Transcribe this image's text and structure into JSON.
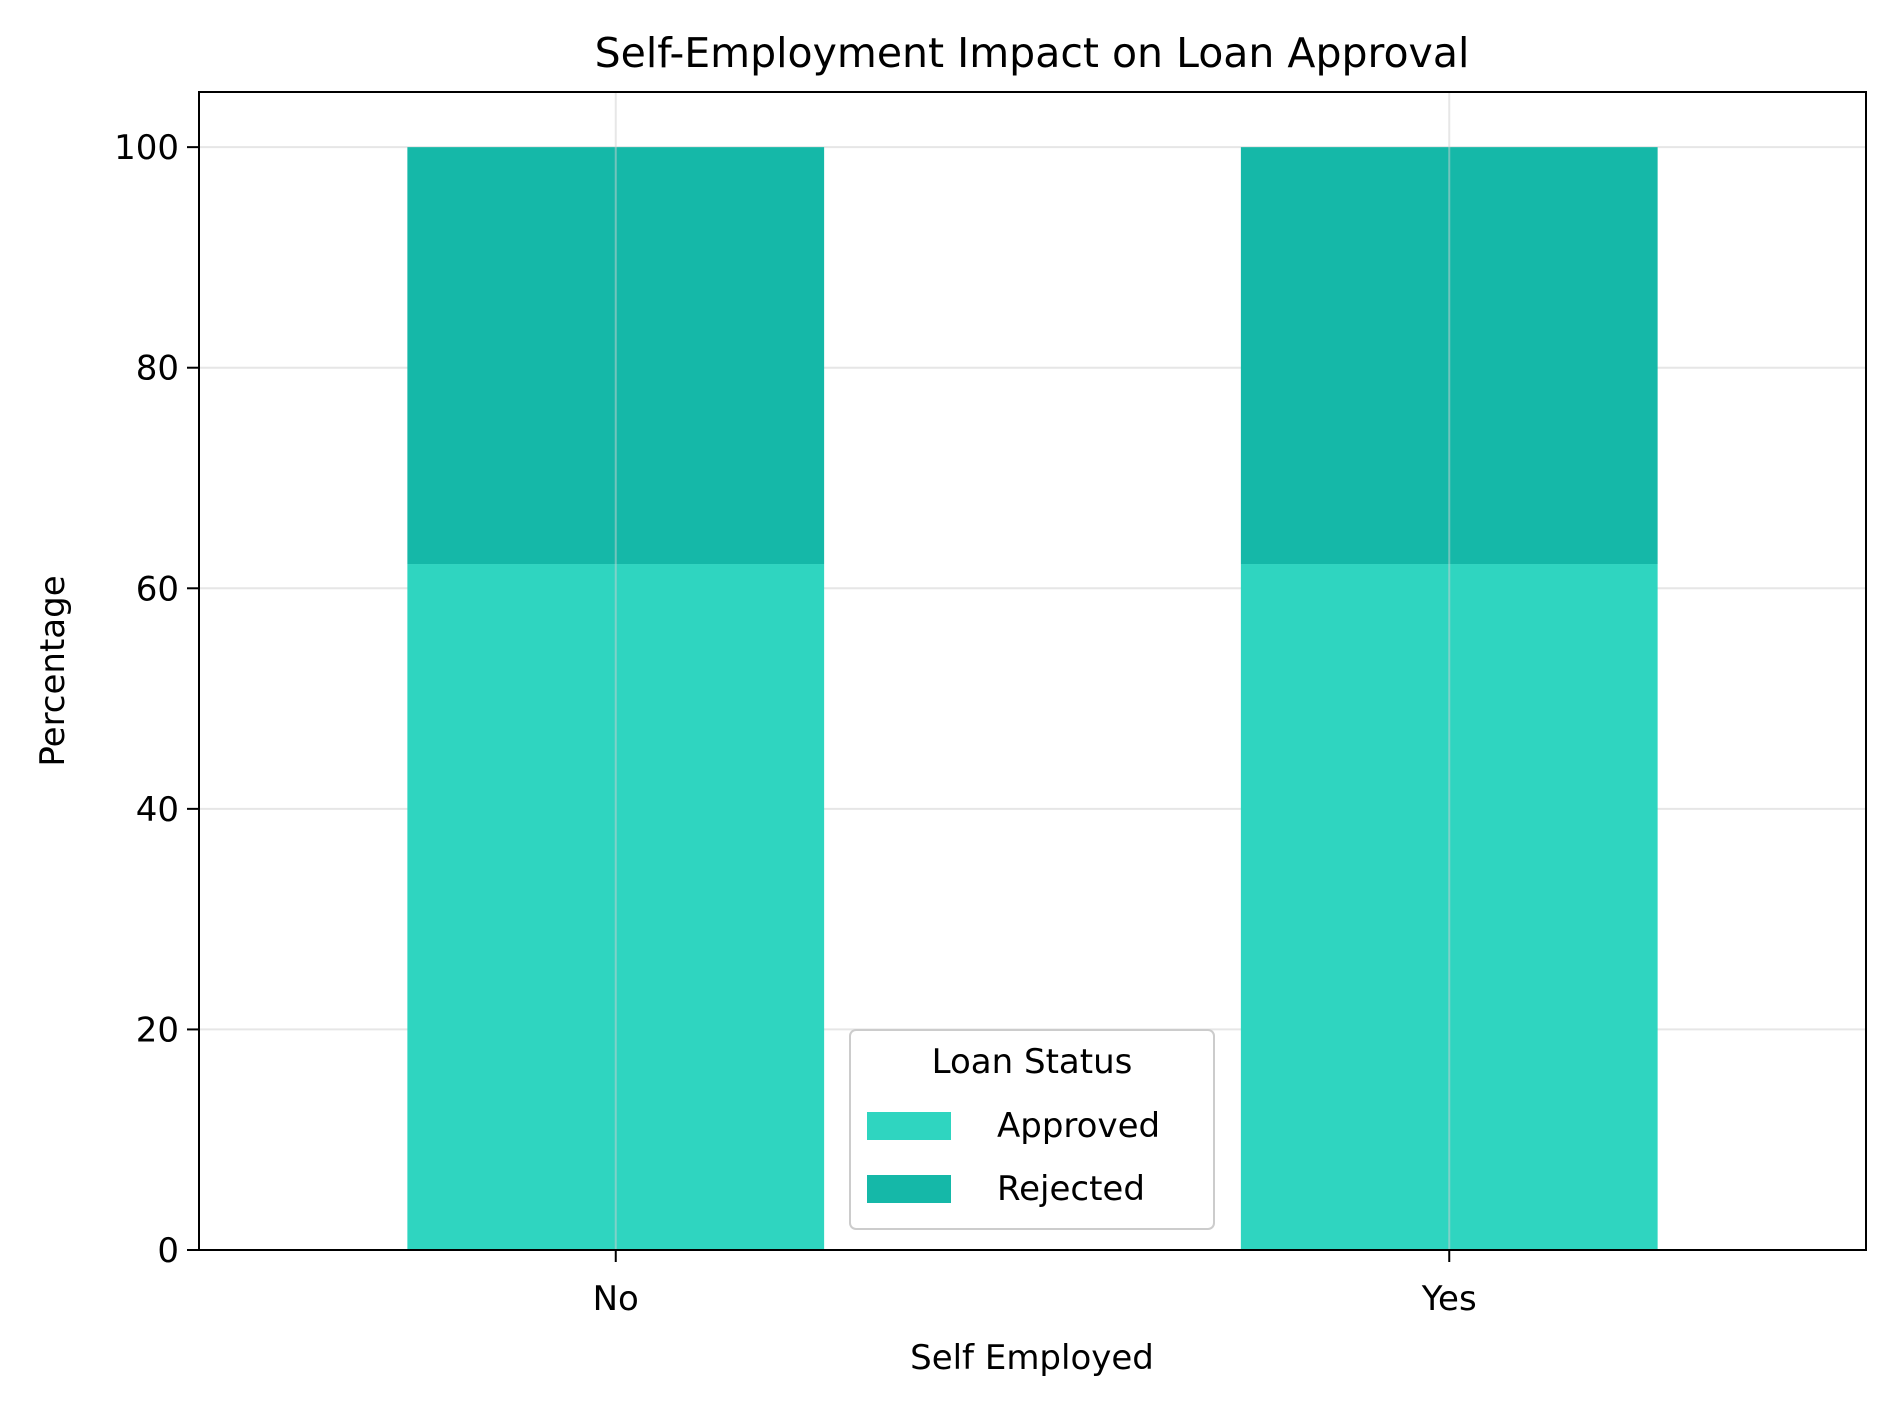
{
  "chart_data": {
    "type": "bar",
    "stacked": true,
    "title": "Self-Employment Impact on Loan Approval",
    "xlabel": "Self Employed",
    "ylabel": "Percentage",
    "categories": [
      "No",
      "Yes"
    ],
    "series": [
      {
        "name": "Approved",
        "values": [
          62.2,
          62.2
        ],
        "color": "#2fd5c0"
      },
      {
        "name": "Rejected",
        "values": [
          37.8,
          37.8
        ],
        "color": "#15b8a8"
      }
    ],
    "ylim": [
      0,
      105
    ],
    "yticks": [
      0,
      20,
      40,
      60,
      80,
      100
    ],
    "grid": true,
    "legend": {
      "title": "Loan Status",
      "position": "lower center"
    }
  }
}
